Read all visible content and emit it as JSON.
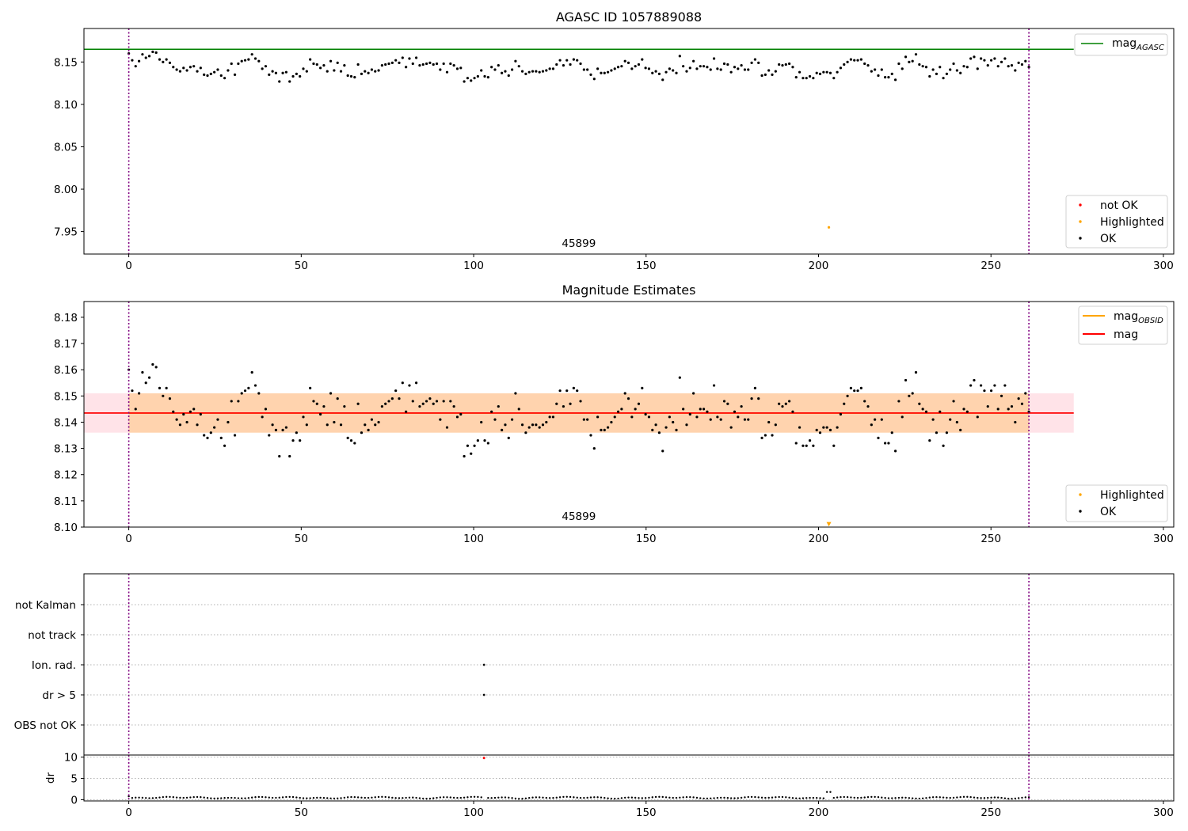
{
  "chart_data": [
    {
      "type": "scatter",
      "title": "AGASC ID 1057889088",
      "xlabel": "",
      "ylabel": "",
      "xlim": [
        -13,
        303
      ],
      "ylim": [
        7.9235,
        8.1895
      ],
      "xticks": [
        0,
        50,
        100,
        150,
        200,
        250,
        300
      ],
      "yticks": [
        "7.95",
        "8.00",
        "8.05",
        "8.10",
        "8.15"
      ],
      "vlines": [
        0,
        261
      ],
      "hline": {
        "label": "mag",
        "sub": "AGASC",
        "y": 8.165,
        "color": "#008000",
        "x_end": 274
      },
      "annotation": {
        "text": "45899",
        "x": 130.5,
        "y": 7.93
      },
      "legend_top": [
        {
          "label": "mag",
          "sub": "AGASC",
          "color": "#008000"
        }
      ],
      "legend_bottom": [
        {
          "label": "not OK",
          "color": "#ff0000"
        },
        {
          "label": "Highlighted",
          "color": "#ffa500"
        },
        {
          "label": "OK",
          "color": "#000000"
        }
      ],
      "series": [
        {
          "name": "OK",
          "color": "#000000",
          "x_range": [
            0,
            261
          ],
          "y": [
            8.16,
            8.152,
            8.145,
            8.151,
            8.159,
            8.155,
            8.157,
            8.162,
            8.161,
            8.153,
            8.15,
            8.153,
            8.149,
            8.144,
            8.141,
            8.139,
            8.143,
            8.14,
            8.144,
            8.145,
            8.139,
            8.143,
            8.135,
            8.134,
            8.136,
            8.138,
            8.141,
            8.134,
            8.131,
            8.14,
            8.148,
            8.135,
            8.148,
            8.151,
            8.152,
            8.153,
            8.159,
            8.154,
            8.151,
            8.142,
            8.145,
            8.135,
            8.139,
            8.137,
            8.127,
            8.137,
            8.138,
            8.127,
            8.133,
            8.136,
            8.133,
            8.142,
            8.139,
            8.153,
            8.148,
            8.147,
            8.143,
            8.146,
            8.139,
            8.151,
            8.14,
            8.149,
            8.139,
            8.146,
            8.134,
            8.133,
            8.132,
            8.147,
            8.136,
            8.139,
            8.137,
            8.141,
            8.139,
            8.14,
            8.146,
            8.147,
            8.148,
            8.149,
            8.152,
            8.149,
            8.155,
            8.144,
            8.154,
            8.148,
            8.155,
            8.146,
            8.147,
            8.148,
            8.149,
            8.147,
            8.148,
            8.141,
            8.148,
            8.138,
            8.148,
            8.146,
            8.142,
            8.143,
            8.127,
            8.131,
            8.128,
            8.131,
            8.133,
            8.14,
            8.133,
            8.132,
            8.144,
            8.141,
            8.146,
            8.137,
            8.139,
            8.134,
            8.141,
            8.151,
            8.145,
            8.139,
            8.136,
            8.138,
            8.139,
            8.139,
            8.138,
            8.139,
            8.14,
            8.142,
            8.142,
            8.147,
            8.152,
            8.146,
            8.152,
            8.147,
            8.153,
            8.152,
            8.148,
            8.141,
            8.141,
            8.135,
            8.13,
            8.142,
            8.137,
            8.137,
            8.138,
            8.14,
            8.142,
            8.144,
            8.145,
            8.151,
            8.149,
            8.142,
            8.145,
            8.147,
            8.153,
            8.143,
            8.142,
            8.137,
            8.139,
            8.136,
            8.129,
            8.138,
            8.142,
            8.14,
            8.137,
            8.157,
            8.145,
            8.139,
            8.143,
            8.151,
            8.142,
            8.145,
            8.145,
            8.144,
            8.141,
            8.154,
            8.142,
            8.141,
            8.148,
            8.147,
            8.138,
            8.144,
            8.142,
            8.146,
            8.141,
            8.141,
            8.149,
            8.153,
            8.149,
            8.134,
            8.135,
            8.14,
            8.135,
            8.139,
            8.147,
            8.146,
            8.147,
            8.148,
            8.144,
            8.132,
            8.138,
            8.131,
            8.131,
            8.133,
            8.131,
            8.137,
            8.136,
            8.138,
            8.138,
            8.137,
            8.131,
            8.138,
            8.143,
            8.147,
            8.15,
            8.153,
            8.152,
            8.152,
            8.153,
            8.148,
            8.146,
            8.139,
            8.141,
            8.134,
            8.141,
            8.132,
            8.132,
            8.136,
            8.129,
            8.148,
            8.142,
            8.156,
            8.15,
            8.151,
            8.159,
            8.147,
            8.145,
            8.144,
            8.133,
            8.141,
            8.136,
            8.144,
            8.131,
            8.136,
            8.141,
            8.148,
            8.14,
            8.137,
            8.145,
            8.144,
            8.154,
            8.156,
            8.142,
            8.154,
            8.152,
            8.146,
            8.152,
            8.154,
            8.145,
            8.15,
            8.154,
            8.145,
            8.146,
            8.14,
            8.149,
            8.147,
            8.151,
            8.144
          ]
        },
        {
          "name": "Highlighted",
          "color": "#ffa500",
          "points": [
            [
              203,
              7.955
            ]
          ]
        }
      ]
    },
    {
      "type": "scatter",
      "title": "Magnitude Estimates",
      "xlabel": "",
      "ylabel": "",
      "xlim": [
        -13,
        303
      ],
      "ylim": [
        8.1,
        8.186
      ],
      "xticks": [
        0,
        50,
        100,
        150,
        200,
        250,
        300
      ],
      "yticks": [
        "8.10",
        "8.11",
        "8.12",
        "8.13",
        "8.14",
        "8.15",
        "8.16",
        "8.17",
        "8.18"
      ],
      "vlines": [
        0,
        261
      ],
      "bands": [
        {
          "x_start": -13,
          "x_end": 274,
          "y_low": 8.136,
          "y_high": 8.151,
          "color": "#ffc0cb",
          "opacity": 0.45
        },
        {
          "x_start": 0,
          "x_end": 261,
          "y_low": 8.136,
          "y_high": 8.151,
          "color": "#ffa500",
          "opacity": 0.25
        }
      ],
      "lines": [
        {
          "label": "mag",
          "sub": "OBSID",
          "color": "#ffa500",
          "y": 8.1435,
          "x_start": 0,
          "x_end": 261
        },
        {
          "label": "mag",
          "sub": "",
          "color": "#ff0000",
          "y": 8.1435,
          "x_start": -13,
          "x_end": 274
        }
      ],
      "annotation": {
        "text": "45899",
        "x": 130.5,
        "y": 8.103
      },
      "legend_top": [
        {
          "label": "mag",
          "sub": "OBSID",
          "color": "#ffa500"
        },
        {
          "label": "mag",
          "sub": "",
          "color": "#ff0000"
        }
      ],
      "legend_bottom": [
        {
          "label": "Highlighted",
          "color": "#ffa500"
        },
        {
          "label": "OK",
          "color": "#000000"
        }
      ],
      "series": [
        {
          "name": "OK",
          "color": "#000000",
          "x_range": [
            0,
            261
          ],
          "same_as_panel_1": true
        },
        {
          "name": "Highlighted",
          "color": "#ffa500",
          "marker": "triangle-down",
          "points": [
            [
              203,
              8.101
            ]
          ]
        }
      ]
    },
    {
      "type": "scatter",
      "title": "",
      "xlim": [
        -13,
        303
      ],
      "vlines": [
        0,
        261
      ],
      "categories": [
        "not Kalman",
        "not track",
        "Ion. rad.",
        "dr > 5",
        "OBS not OK"
      ],
      "flags": [
        {
          "category": "Ion. rad.",
          "x": [
            103
          ]
        },
        {
          "category": "dr > 5",
          "x": [
            103
          ]
        }
      ]
    },
    {
      "type": "scatter",
      "title": "",
      "xlabel": "",
      "ylabel": "dr",
      "xlim": [
        -13,
        303
      ],
      "ylim": [
        -0.3,
        10.5
      ],
      "xticks": [
        0,
        50,
        100,
        150,
        200,
        250,
        300
      ],
      "yticks": [
        "0",
        "5",
        "10"
      ],
      "vlines": [
        0,
        261
      ],
      "series": [
        {
          "name": "OK",
          "color": "#000000",
          "x_range": [
            0,
            261
          ]
        },
        {
          "name": "not OK",
          "color": "#ff0000",
          "points": [
            [
              103,
              9.8
            ]
          ]
        }
      ]
    }
  ]
}
